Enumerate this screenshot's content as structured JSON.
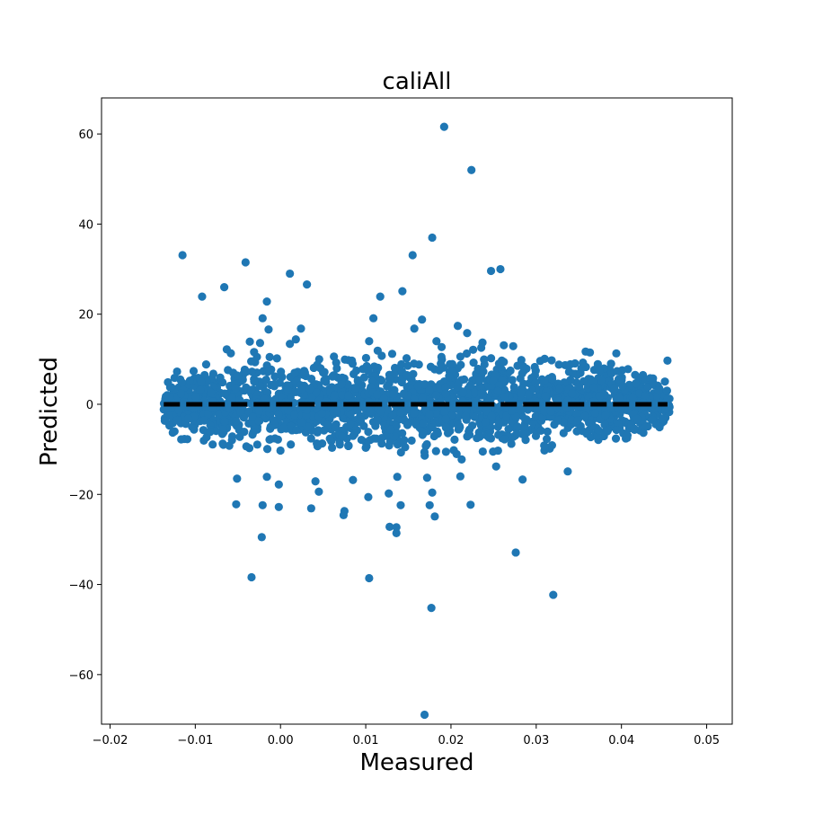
{
  "chart_data": {
    "type": "scatter",
    "title": "caliAll",
    "xlabel": "Measured",
    "ylabel": "Predicted",
    "xlim": [
      -0.021,
      0.053
    ],
    "ylim": [
      -71,
      68
    ],
    "grid": false,
    "x_ticks": [
      -0.02,
      -0.01,
      0.0,
      0.01,
      0.02,
      0.03,
      0.04,
      0.05
    ],
    "x_tick_labels": [
      "−0.02",
      "−0.01",
      "0.00",
      "0.01",
      "0.02",
      "0.03",
      "0.04",
      "0.05"
    ],
    "y_ticks": [
      -60,
      -40,
      -20,
      0,
      20,
      40,
      60
    ],
    "y_tick_labels": [
      "−60",
      "−40",
      "−20",
      "0",
      "20",
      "40",
      "60"
    ],
    "colors": {
      "points": "#1f77b4",
      "reference_line": "#000000"
    },
    "reference_line": {
      "style": "dashed",
      "x": [
        -0.0137,
        0.0454
      ],
      "y": [
        0,
        0
      ]
    },
    "dense_band": {
      "x_range": [
        -0.0137,
        0.0457
      ],
      "core_y_spread": 4,
      "edge_y_spread": 11,
      "point_count": 2200
    },
    "outliers": [
      {
        "x": 0.0192,
        "y": 61.6
      },
      {
        "x": 0.0224,
        "y": 52.0
      },
      {
        "x": 0.0178,
        "y": 37.0
      },
      {
        "x": -0.0115,
        "y": 33.1
      },
      {
        "x": 0.0155,
        "y": 33.1
      },
      {
        "x": -0.0041,
        "y": 31.5
      },
      {
        "x": 0.0247,
        "y": 29.6
      },
      {
        "x": 0.0258,
        "y": 30.0
      },
      {
        "x": 0.0011,
        "y": 29.0
      },
      {
        "x": 0.0031,
        "y": 26.6
      },
      {
        "x": -0.0066,
        "y": 26.0
      },
      {
        "x": 0.0143,
        "y": 25.1
      },
      {
        "x": -0.0092,
        "y": 23.9
      },
      {
        "x": 0.0117,
        "y": 23.9
      },
      {
        "x": -0.0016,
        "y": 22.8
      },
      {
        "x": -0.0021,
        "y": 19.1
      },
      {
        "x": 0.0109,
        "y": 19.1
      },
      {
        "x": 0.0166,
        "y": 18.8
      },
      {
        "x": 0.0208,
        "y": 17.4
      },
      {
        "x": 0.0024,
        "y": 16.8
      },
      {
        "x": 0.0157,
        "y": 16.8
      },
      {
        "x": -0.0014,
        "y": 16.6
      },
      {
        "x": 0.0219,
        "y": 15.8
      },
      {
        "x": 0.0018,
        "y": 14.4
      },
      {
        "x": 0.0183,
        "y": 14.0
      },
      {
        "x": -0.0036,
        "y": 13.9
      },
      {
        "x": 0.0237,
        "y": 13.7
      },
      {
        "x": 0.0262,
        "y": 13.1
      },
      {
        "x": 0.0273,
        "y": 12.9
      },
      {
        "x": 0.0011,
        "y": 13.4
      },
      {
        "x": -0.0024,
        "y": 13.6
      },
      {
        "x": 0.0104,
        "y": 14.0
      },
      {
        "x": 0.0226,
        "y": 12.1
      },
      {
        "x": 0.0189,
        "y": 12.7
      },
      {
        "x": 0.0358,
        "y": 11.7
      },
      {
        "x": 0.0394,
        "y": 11.3
      },
      {
        "x": 0.0363,
        "y": 11.5
      },
      {
        "x": -0.0031,
        "y": 11.6
      },
      {
        "x": 0.0114,
        "y": 11.9
      },
      {
        "x": 0.0131,
        "y": 11.2
      },
      {
        "x": 0.0454,
        "y": 9.7
      },
      {
        "x": 0.0253,
        "y": -13.8
      },
      {
        "x": 0.0337,
        "y": -14.9
      },
      {
        "x": 0.0284,
        "y": -16.7
      },
      {
        "x": -0.0051,
        "y": -16.5
      },
      {
        "x": -0.0016,
        "y": -16.1
      },
      {
        "x": 0.0085,
        "y": -16.8
      },
      {
        "x": 0.0137,
        "y": -16.1
      },
      {
        "x": 0.0172,
        "y": -16.3
      },
      {
        "x": 0.0211,
        "y": -16.0
      },
      {
        "x": 0.0041,
        "y": -17.1
      },
      {
        "x": -0.0002,
        "y": -17.8
      },
      {
        "x": 0.0178,
        "y": -19.6
      },
      {
        "x": 0.0045,
        "y": -19.4
      },
      {
        "x": 0.0127,
        "y": -19.8
      },
      {
        "x": 0.0103,
        "y": -20.6
      },
      {
        "x": 0.0223,
        "y": -22.3
      },
      {
        "x": 0.0175,
        "y": -22.4
      },
      {
        "x": 0.0141,
        "y": -22.4
      },
      {
        "x": -0.0052,
        "y": -22.2
      },
      {
        "x": -0.0021,
        "y": -22.4
      },
      {
        "x": -0.0002,
        "y": -22.8
      },
      {
        "x": 0.0036,
        "y": -23.1
      },
      {
        "x": 0.0075,
        "y": -23.7
      },
      {
        "x": 0.0074,
        "y": -24.6
      },
      {
        "x": 0.0181,
        "y": -24.9
      },
      {
        "x": 0.0128,
        "y": -27.2
      },
      {
        "x": 0.0136,
        "y": -27.3
      },
      {
        "x": 0.0136,
        "y": -28.6
      },
      {
        "x": -0.0022,
        "y": -29.5
      },
      {
        "x": 0.0276,
        "y": -32.9
      },
      {
        "x": -0.0034,
        "y": -38.4
      },
      {
        "x": 0.0104,
        "y": -38.6
      },
      {
        "x": 0.032,
        "y": -42.3
      },
      {
        "x": 0.0177,
        "y": -45.2
      },
      {
        "x": 0.0169,
        "y": -68.9
      }
    ]
  }
}
